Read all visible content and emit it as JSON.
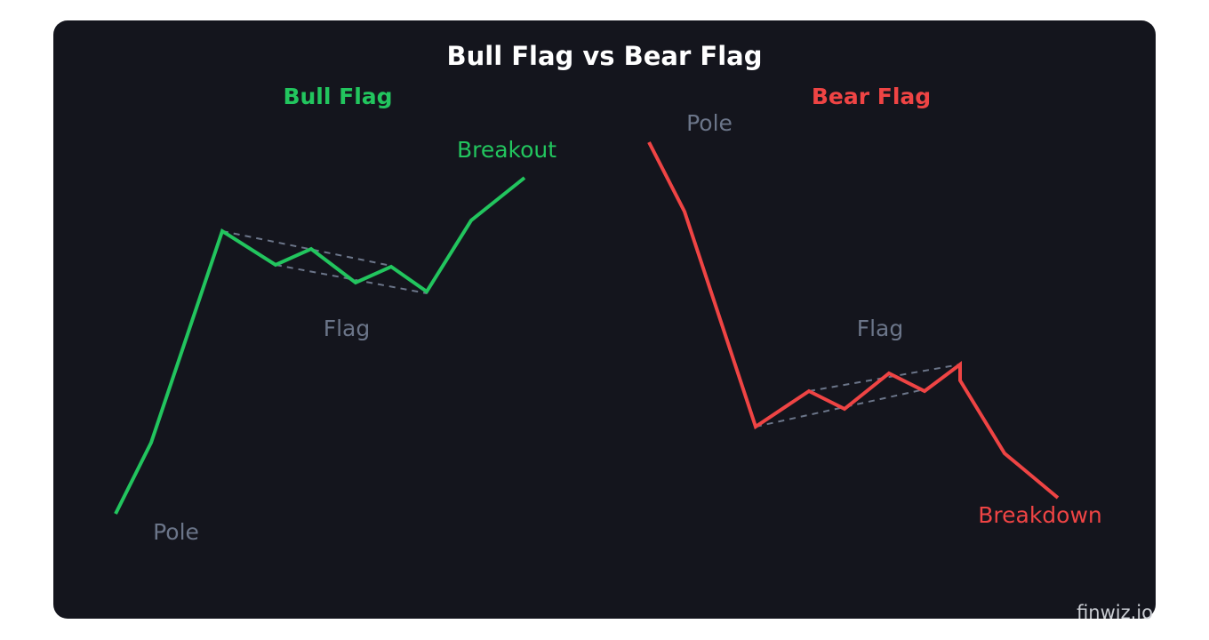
{
  "title": "Bull Flag vs Bear Flag",
  "bull": {
    "heading": "Bull Flag",
    "pole": "Pole",
    "flag": "Flag",
    "breakout": "Breakout"
  },
  "bear": {
    "heading": "Bear Flag",
    "pole": "Pole",
    "flag": "Flag",
    "breakdown": "Breakdown"
  },
  "watermark": "finwiz.io"
}
